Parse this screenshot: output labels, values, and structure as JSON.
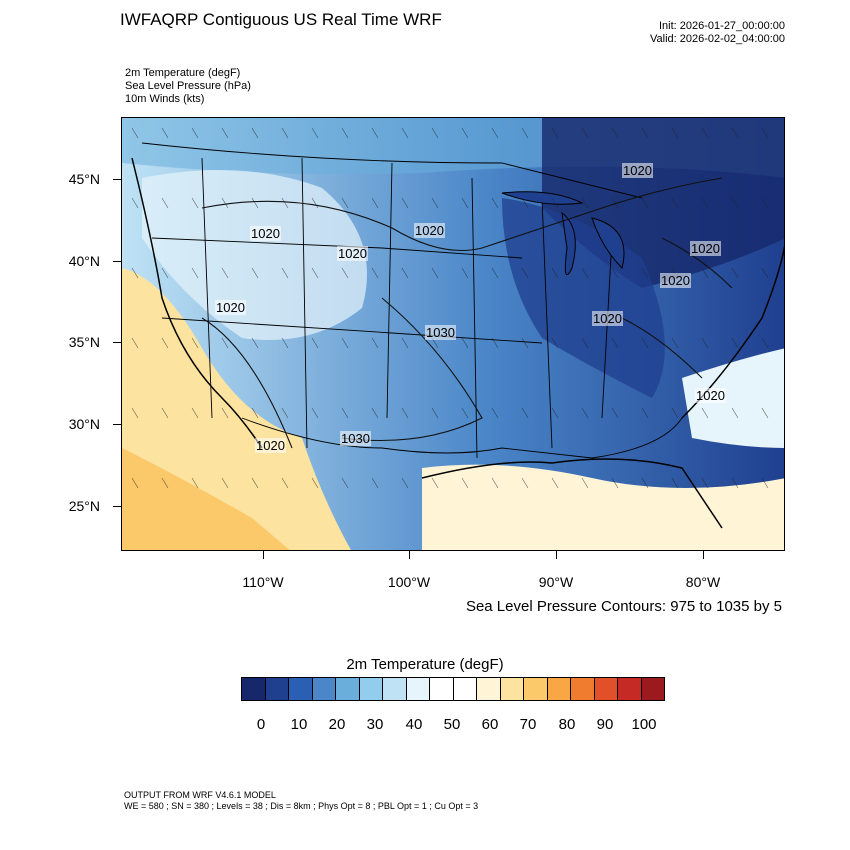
{
  "title": "IWFAQRP Contiguous US Real Time WRF",
  "init": "Init: 2026-01-27_00:00:00",
  "valid": "Valid: 2026-02-02_04:00:00",
  "fields": [
    "2m Temperature   (degF)",
    "Sea Level Pressure   (hPa)",
    "10m Winds   (kts)"
  ],
  "lat_labels": [
    "45°N",
    "40°N",
    "35°N",
    "30°N",
    "25°N"
  ],
  "lon_labels": [
    "110°W",
    "100°W",
    "90°W",
    "80°W"
  ],
  "contour_labels": [
    "1020",
    "1020",
    "1020",
    "1020",
    "1020",
    "1030",
    "1020",
    "1020",
    "1030",
    "1020",
    "1020",
    "1020"
  ],
  "contour_note": "Sea Level Pressure Contours: 975 to 1035 by 5",
  "colorbar": {
    "title": "2m Temperature  (degF)",
    "labels": [
      "0",
      "10",
      "20",
      "30",
      "40",
      "50",
      "60",
      "70",
      "80",
      "90",
      "100"
    ],
    "colors": [
      "#16286b",
      "#1f3f8f",
      "#2a5fb3",
      "#4a86c8",
      "#6aaedc",
      "#93cdee",
      "#bfe3f5",
      "#e6f4fb",
      "#ffffff",
      "#ffffff",
      "#fff4d6",
      "#fde3a0",
      "#fbc86a",
      "#f8a744",
      "#f07d2f",
      "#e2502a",
      "#c52a25",
      "#9a1a1d"
    ]
  },
  "footer": {
    "line1": "OUTPUT FROM WRF V4.6.1 MODEL",
    "line2": "WE = 580 ; SN = 380 ; Levels = 38 ; Dis = 8km ; Phys Opt = 8 ; PBL Opt = 1 ; Cu Opt = 3"
  },
  "colors": {
    "cold": "#1f3f8f",
    "cool": "#93cdee",
    "warm": "#fbc86a"
  }
}
